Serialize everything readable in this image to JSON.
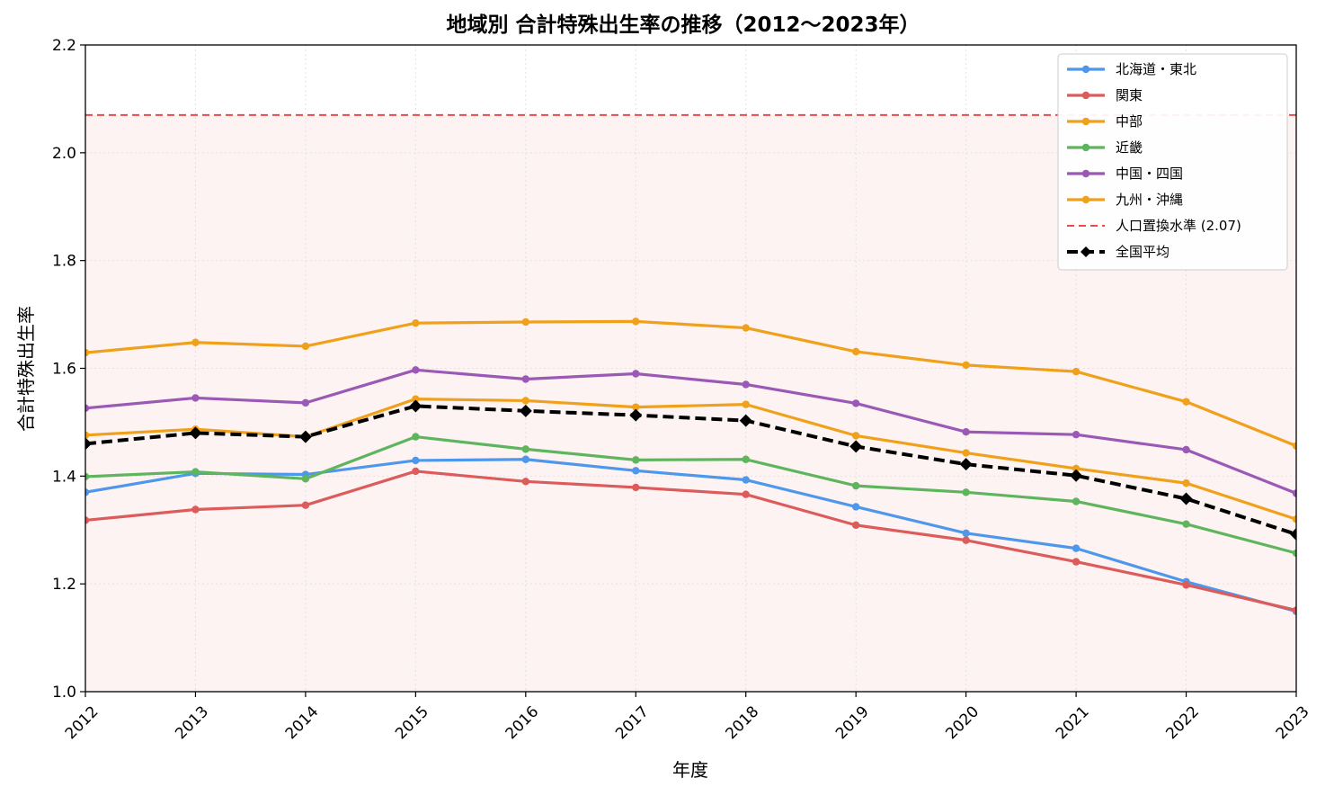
{
  "chart_data": {
    "type": "line",
    "title": "地域別 合計特殊出生率の推移（2012〜2023年）",
    "xlabel": "年度",
    "ylabel": "合計特殊出生率",
    "x": [
      2012,
      2013,
      2014,
      2015,
      2016,
      2017,
      2018,
      2019,
      2020,
      2021,
      2022,
      2023
    ],
    "xlim": [
      2012,
      2023
    ],
    "ylim": [
      1.0,
      2.2
    ],
    "yticks": [
      1.0,
      1.2,
      1.4,
      1.6,
      1.8,
      2.0,
      2.2
    ],
    "ytick_labels": [
      "1.0",
      "1.2",
      "1.4",
      "1.6",
      "1.8",
      "2.0",
      "2.2"
    ],
    "grid": true,
    "legend_position": "top-right",
    "series": [
      {
        "name": "北海道・東北",
        "color": "#4e97ea",
        "values": [
          1.37,
          1.405,
          1.403,
          1.429,
          1.431,
          1.41,
          1.393,
          1.343,
          1.294,
          1.266,
          1.204,
          1.149
        ]
      },
      {
        "name": "関東",
        "color": "#dc5b5b",
        "values": [
          1.318,
          1.338,
          1.346,
          1.409,
          1.39,
          1.379,
          1.366,
          1.309,
          1.281,
          1.241,
          1.198,
          1.151
        ]
      },
      {
        "name": "中部",
        "color": "#f0a11b",
        "values": [
          1.629,
          1.648,
          1.641,
          1.684,
          1.686,
          1.687,
          1.675,
          1.631,
          1.606,
          1.594,
          1.538,
          1.456
        ]
      },
      {
        "name": "近畿",
        "color": "#5eb55e",
        "values": [
          1.399,
          1.408,
          1.395,
          1.473,
          1.45,
          1.43,
          1.431,
          1.382,
          1.37,
          1.353,
          1.311,
          1.257
        ]
      },
      {
        "name": "中国・四国",
        "color": "#9b59b6",
        "values": [
          1.526,
          1.545,
          1.536,
          1.597,
          1.58,
          1.59,
          1.57,
          1.535,
          1.482,
          1.477,
          1.449,
          1.368
        ]
      },
      {
        "name": "九州・沖縄",
        "color": "#f0a11b",
        "values": [
          1.476,
          1.487,
          1.473,
          1.543,
          1.54,
          1.528,
          1.533,
          1.475,
          1.443,
          1.414,
          1.387,
          1.32
        ]
      }
    ],
    "reference_line": {
      "name": "人口置換水準 (2.07)",
      "value": 2.07,
      "color": "#ef4a4a"
    },
    "average": {
      "name": "全国平均",
      "color": "#000000",
      "values": [
        1.46,
        1.48,
        1.473,
        1.53,
        1.521,
        1.513,
        1.503,
        1.455,
        1.422,
        1.401,
        1.358,
        1.292
      ]
    },
    "background_shade_color": "#fdf3f3"
  }
}
